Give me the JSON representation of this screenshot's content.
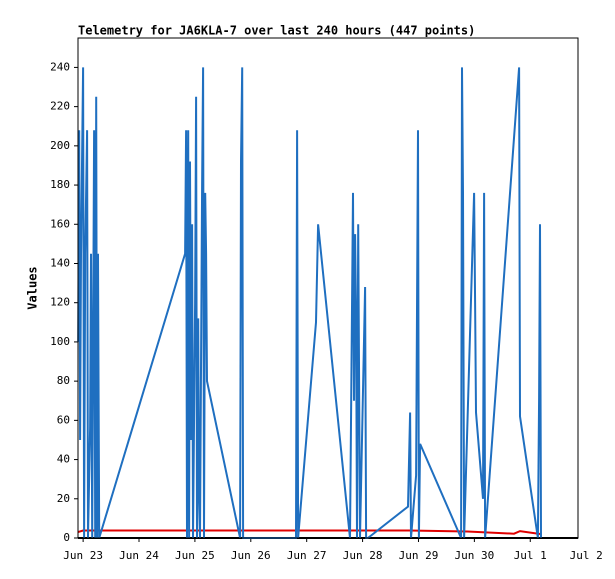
{
  "chart_data": {
    "type": "line",
    "title": "Telemetry for JA6KLA-7 over last 240 hours (447 points)",
    "y_label": "Values",
    "xlim": [
      -2.2,
      212.5
    ],
    "xticks": [
      {
        "value": 0,
        "label": "Jun 23"
      },
      {
        "value": 24,
        "label": "Jun 24"
      },
      {
        "value": 48,
        "label": "Jun 25"
      },
      {
        "value": 72,
        "label": "Jun 26"
      },
      {
        "value": 96,
        "label": "Jun 27"
      },
      {
        "value": 120,
        "label": "Jun 28"
      },
      {
        "value": 144,
        "label": "Jun 29"
      },
      {
        "value": 168,
        "label": "Jun 30"
      },
      {
        "value": 192,
        "label": "Jul 1"
      },
      {
        "value": 216,
        "label": "Jul 2"
      }
    ],
    "ylim": [
      0,
      255
    ],
    "yticks": [
      0,
      20,
      40,
      60,
      80,
      100,
      120,
      140,
      160,
      180,
      200,
      220,
      240
    ],
    "series": [
      {
        "color": "#000000",
        "x": [
          -2.2,
          212.5
        ],
        "values": [
          0,
          0
        ]
      },
      {
        "color": "#e00000",
        "x": [
          -2.2,
          0,
          140,
          165,
          185,
          187.6,
          196.6
        ],
        "values": [
          3,
          3.8,
          3.8,
          3.3,
          2.2,
          3.5,
          2
        ]
      },
      {
        "color": "#1f6fc0",
        "x": [
          -2.1,
          -1.7,
          -1.3,
          -0.9,
          0,
          0.4,
          0.9,
          1.7,
          2.1,
          3.0,
          3.4,
          3.9,
          4.7,
          5.2,
          5.6,
          6.0,
          6.4,
          6.9,
          43.8,
          44.2,
          44.6,
          45.1,
          45.5,
          45.9,
          46.4,
          46.8,
          47.2,
          48.1,
          48.5,
          48.9,
          49.4,
          49.8,
          50.2,
          51.1,
          51.5,
          51.9,
          52.4,
          52.8,
          53.2,
          67.4,
          67.8,
          68.3,
          68.7,
          91.4,
          91.9,
          92.3,
          100.0,
          100.9,
          114.6,
          115.9,
          116.3,
          116.8,
          117.2,
          117.6,
          118.1,
          118.5,
          118.9,
          121.1,
          121.5,
          122.3,
          139.5,
          140.4,
          140.8,
          143.0,
          143.8,
          144.2,
          144.7,
          162.3,
          162.7,
          163.1,
          163.6,
          167.9,
          168.3,
          168.7,
          171.7,
          172.2,
          172.6,
          187.2,
          187.6,
          195.3,
          195.8,
          196.2,
          196.6
        ],
        "values": [
          100,
          208,
          50,
          145,
          240,
          0,
          145,
          208,
          0,
          56,
          145,
          0,
          208,
          0,
          225,
          0,
          145,
          0,
          145,
          208,
          0,
          208,
          0,
          192,
          50,
          160,
          0,
          120,
          225,
          0,
          112,
          20,
          0,
          180,
          240,
          0,
          176,
          145,
          80,
          0,
          192,
          240,
          0,
          0,
          208,
          0,
          110,
          160,
          0,
          176,
          70,
          155,
          112,
          0,
          160,
          80,
          0,
          128,
          0,
          0,
          16,
          64,
          0,
          32,
          208,
          0,
          48,
          0,
          240,
          176,
          0,
          176,
          120,
          64,
          20,
          176,
          0,
          240,
          62,
          0,
          72,
          160,
          0
        ]
      }
    ]
  }
}
